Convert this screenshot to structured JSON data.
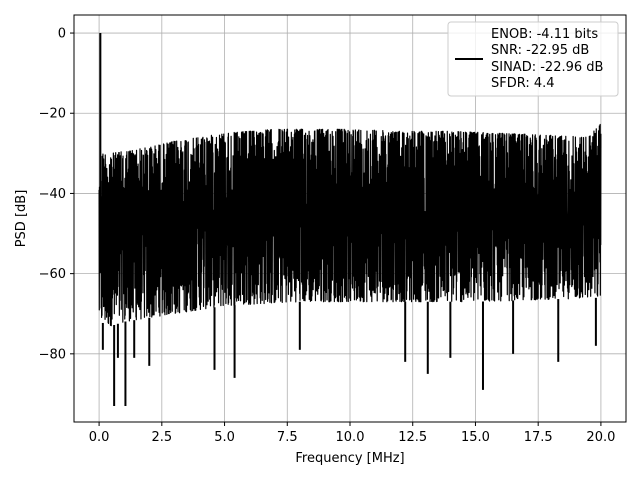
{
  "chart_data": {
    "type": "line",
    "xlabel": "Frequency [MHz]",
    "ylabel": "PSD [dB]",
    "xlim": [
      -1.0,
      21.0
    ],
    "ylim": [
      -97.0,
      4.5
    ],
    "x_ticks": [
      0.0,
      2.5,
      5.0,
      7.5,
      10.0,
      12.5,
      15.0,
      17.5,
      20.0
    ],
    "x_tick_labels": [
      "0.0",
      "2.5",
      "5.0",
      "7.5",
      "10.0",
      "12.5",
      "15.0",
      "17.5",
      "20.0"
    ],
    "y_ticks": [
      0,
      -20,
      -40,
      -60,
      -80
    ],
    "y_tick_labels": [
      "0",
      "−20",
      "−40",
      "−60",
      "−80"
    ],
    "grid": true,
    "legend_position": "upper-right",
    "color": "#000000",
    "series": [
      {
        "name": "ENOB: -4.11 bits\nSNR: -22.95 dB\nSINAD: -22.96 dB\nSFDR: 4.4",
        "legend_lines": [
          "ENOB: -4.11 bits",
          "SNR: -22.95 dB",
          "SINAD: -22.96 dB",
          "SFDR: 4.4"
        ],
        "x_range": [
          0.0,
          20.0
        ],
        "peak": {
          "x": 0.05,
          "y": 0.0
        },
        "upper_envelope": {
          "x": [
            0.0,
            0.1,
            0.5,
            1.0,
            2.0,
            3.0,
            4.0,
            5.0,
            6.0,
            7.0,
            8.0,
            10.0,
            12.0,
            14.0,
            16.0,
            18.0,
            19.5,
            20.0
          ],
          "y": [
            -30,
            -30,
            -30,
            -29.5,
            -28.5,
            -27.0,
            -26.0,
            -25.0,
            -24.5,
            -24.0,
            -24.0,
            -24.0,
            -24.5,
            -24.5,
            -25.0,
            -25.5,
            -26.0,
            -22.5
          ]
        },
        "lower_envelope": {
          "x": [
            0.0,
            0.5,
            1.0,
            2.0,
            5.0,
            8.0,
            10.0,
            15.0,
            20.0
          ],
          "y": [
            -72,
            -73,
            -72,
            -71,
            -68,
            -67,
            -67,
            -67,
            -66
          ]
        },
        "deep_notches": [
          {
            "x": 0.15,
            "y": -79
          },
          {
            "x": 0.6,
            "y": -93
          },
          {
            "x": 0.75,
            "y": -81
          },
          {
            "x": 1.05,
            "y": -93
          },
          {
            "x": 1.4,
            "y": -81
          },
          {
            "x": 2.0,
            "y": -83
          },
          {
            "x": 4.6,
            "y": -84
          },
          {
            "x": 5.4,
            "y": -86
          },
          {
            "x": 8.0,
            "y": -79
          },
          {
            "x": 12.2,
            "y": -82
          },
          {
            "x": 13.1,
            "y": -85
          },
          {
            "x": 14.0,
            "y": -81
          },
          {
            "x": 15.3,
            "y": -89
          },
          {
            "x": 16.5,
            "y": -80
          },
          {
            "x": 18.3,
            "y": -82
          },
          {
            "x": 19.8,
            "y": -78
          }
        ]
      }
    ]
  }
}
